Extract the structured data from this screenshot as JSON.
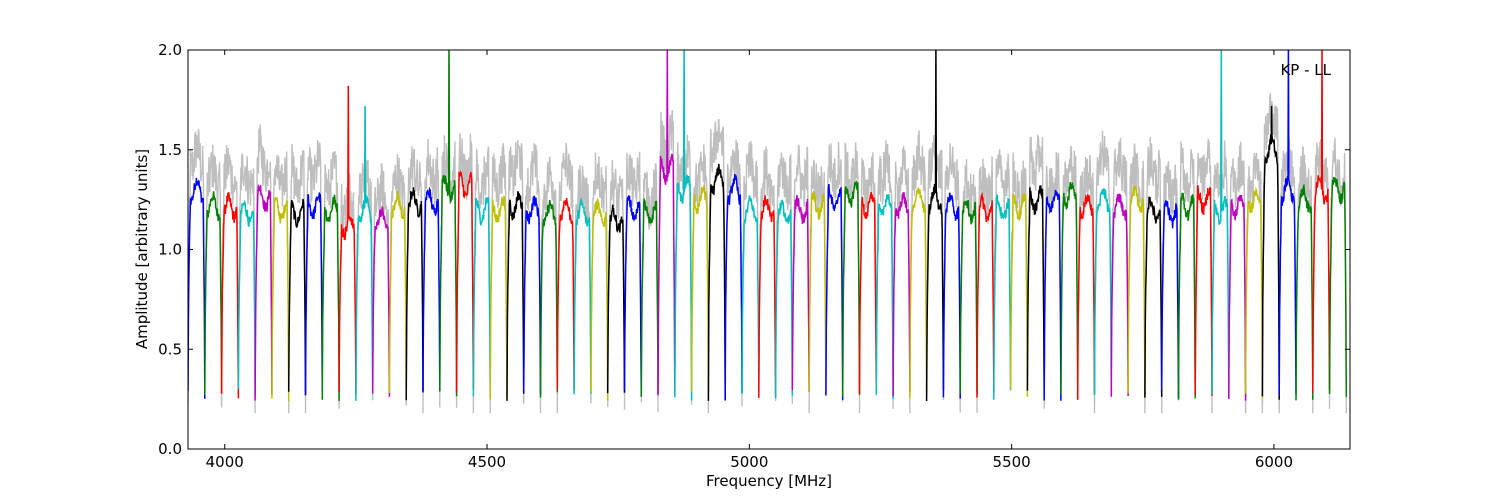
{
  "chart_data": {
    "type": "line",
    "title": "",
    "annotation": "KP - LL",
    "xlabel": "Frequency [MHz]",
    "ylabel": "Amplitude [arbitrary units]",
    "xlim": [
      3930,
      6145
    ],
    "ylim": [
      0.0,
      2.0
    ],
    "x_ticks": [
      4000,
      4500,
      5000,
      5500,
      6000
    ],
    "x_tick_labels": [
      "4000",
      "4500",
      "5000",
      "5500",
      "6000"
    ],
    "y_ticks": [
      0.0,
      0.5,
      1.0,
      1.5,
      2.0
    ],
    "y_tick_labels": [
      "0.0",
      "0.5",
      "1.0",
      "1.5",
      "2.0"
    ],
    "grid": false,
    "legend": "none",
    "background_color": "#bebebe",
    "channel_width_mhz": 32,
    "channel_colors": [
      "#0000ff",
      "#008000",
      "#ff0000",
      "#00bfbf",
      "#bf00bf",
      "#bfbf00",
      "#000000"
    ],
    "channels": [
      {
        "start": 3930,
        "level": 1.3,
        "color": "#0000ff"
      },
      {
        "start": 3962,
        "level": 1.22,
        "color": "#008000"
      },
      {
        "start": 3994,
        "level": 1.21,
        "color": "#ff0000"
      },
      {
        "start": 4026,
        "level": 1.18,
        "color": "#00bfbf"
      },
      {
        "start": 4058,
        "level": 1.26,
        "color": "#bf00bf"
      },
      {
        "start": 4090,
        "level": 1.2,
        "color": "#bfbf00"
      },
      {
        "start": 4122,
        "level": 1.18,
        "color": "#000000"
      },
      {
        "start": 4154,
        "level": 1.22,
        "color": "#0000ff"
      },
      {
        "start": 4186,
        "level": 1.2,
        "color": "#008000"
      },
      {
        "start": 4218,
        "level": 1.12,
        "color": "#ff0000",
        "spike": 1.82
      },
      {
        "start": 4250,
        "level": 1.2,
        "color": "#00bfbf",
        "spike": 1.72
      },
      {
        "start": 4282,
        "level": 1.15,
        "color": "#bf00bf"
      },
      {
        "start": 4314,
        "level": 1.22,
        "color": "#bfbf00"
      },
      {
        "start": 4346,
        "level": 1.24,
        "color": "#000000"
      },
      {
        "start": 4378,
        "level": 1.24,
        "color": "#0000ff"
      },
      {
        "start": 4410,
        "level": 1.3,
        "color": "#008000",
        "spike": 2.0
      },
      {
        "start": 4442,
        "level": 1.32,
        "color": "#ff0000"
      },
      {
        "start": 4474,
        "level": 1.2,
        "color": "#00bfbf"
      },
      {
        "start": 4506,
        "level": 1.2,
        "color": "#bfbf00"
      },
      {
        "start": 4538,
        "level": 1.22,
        "color": "#000000"
      },
      {
        "start": 4570,
        "level": 1.2,
        "color": "#0000ff"
      },
      {
        "start": 4602,
        "level": 1.18,
        "color": "#008000"
      },
      {
        "start": 4634,
        "level": 1.2,
        "color": "#ff0000"
      },
      {
        "start": 4666,
        "level": 1.18,
        "color": "#00bfbf"
      },
      {
        "start": 4698,
        "level": 1.18,
        "color": "#bfbf00"
      },
      {
        "start": 4730,
        "level": 1.15,
        "color": "#000000"
      },
      {
        "start": 4762,
        "level": 1.2,
        "color": "#0000ff"
      },
      {
        "start": 4794,
        "level": 1.18,
        "color": "#008000"
      },
      {
        "start": 4826,
        "level": 1.4,
        "color": "#bf00bf",
        "spike": 2.0
      },
      {
        "start": 4858,
        "level": 1.3,
        "color": "#00bfbf",
        "spike": 2.0
      },
      {
        "start": 4890,
        "level": 1.25,
        "color": "#bfbf00"
      },
      {
        "start": 4922,
        "level": 1.35,
        "color": "#000000"
      },
      {
        "start": 4954,
        "level": 1.3,
        "color": "#0000ff"
      },
      {
        "start": 4986,
        "level": 1.2,
        "color": "#00bfbf"
      },
      {
        "start": 5018,
        "level": 1.2,
        "color": "#ff0000"
      },
      {
        "start": 5050,
        "level": 1.18,
        "color": "#00bfbf"
      },
      {
        "start": 5082,
        "level": 1.2,
        "color": "#bf00bf"
      },
      {
        "start": 5114,
        "level": 1.22,
        "color": "#bfbf00"
      },
      {
        "start": 5146,
        "level": 1.25,
        "color": "#0000ff"
      },
      {
        "start": 5178,
        "level": 1.28,
        "color": "#008000"
      },
      {
        "start": 5210,
        "level": 1.22,
        "color": "#ff0000"
      },
      {
        "start": 5242,
        "level": 1.22,
        "color": "#00bfbf"
      },
      {
        "start": 5274,
        "level": 1.22,
        "color": "#bf00bf"
      },
      {
        "start": 5306,
        "level": 1.25,
        "color": "#bfbf00"
      },
      {
        "start": 5338,
        "level": 1.25,
        "color": "#000000",
        "spike": 2.0
      },
      {
        "start": 5370,
        "level": 1.22,
        "color": "#0000ff"
      },
      {
        "start": 5402,
        "level": 1.2,
        "color": "#008000"
      },
      {
        "start": 5434,
        "level": 1.2,
        "color": "#ff0000"
      },
      {
        "start": 5466,
        "level": 1.2,
        "color": "#00bfbf"
      },
      {
        "start": 5498,
        "level": 1.22,
        "color": "#bfbf00"
      },
      {
        "start": 5530,
        "level": 1.25,
        "color": "#000000"
      },
      {
        "start": 5562,
        "level": 1.25,
        "color": "#0000ff"
      },
      {
        "start": 5594,
        "level": 1.28,
        "color": "#008000"
      },
      {
        "start": 5626,
        "level": 1.22,
        "color": "#ff0000"
      },
      {
        "start": 5658,
        "level": 1.25,
        "color": "#00bfbf"
      },
      {
        "start": 5690,
        "level": 1.22,
        "color": "#bf00bf"
      },
      {
        "start": 5722,
        "level": 1.25,
        "color": "#bfbf00"
      },
      {
        "start": 5754,
        "level": 1.2,
        "color": "#000000"
      },
      {
        "start": 5786,
        "level": 1.18,
        "color": "#0000ff"
      },
      {
        "start": 5818,
        "level": 1.22,
        "color": "#008000"
      },
      {
        "start": 5850,
        "level": 1.25,
        "color": "#ff0000"
      },
      {
        "start": 5882,
        "level": 1.2,
        "color": "#00bfbf",
        "spike": 2.0
      },
      {
        "start": 5914,
        "level": 1.22,
        "color": "#bf00bf"
      },
      {
        "start": 5946,
        "level": 1.25,
        "color": "#bfbf00"
      },
      {
        "start": 5978,
        "level": 1.5,
        "color": "#000000",
        "spike": 1.72
      },
      {
        "start": 6010,
        "level": 1.3,
        "color": "#0000ff",
        "spike": 2.0
      },
      {
        "start": 6042,
        "level": 1.25,
        "color": "#008000"
      },
      {
        "start": 6074,
        "level": 1.3,
        "color": "#ff0000",
        "spike": 2.0
      },
      {
        "start": 6106,
        "level": 1.3,
        "color": "#008000"
      }
    ]
  }
}
